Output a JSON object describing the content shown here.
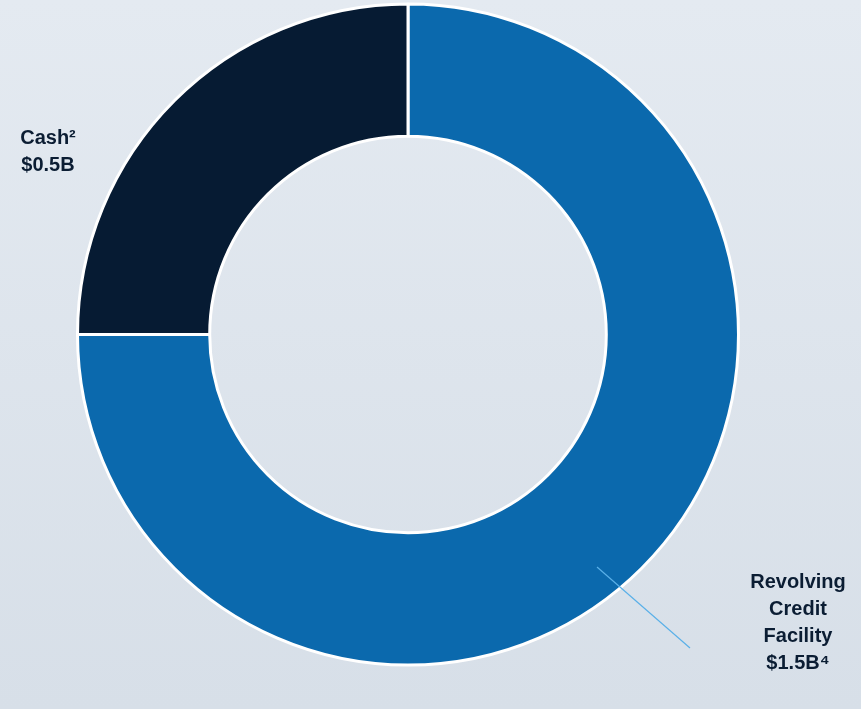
{
  "chart_data": {
    "type": "doughnut",
    "categories": [
      "Revolving Credit Facility",
      "Cash²"
    ],
    "values": [
      1.5,
      0.5
    ],
    "value_labels": [
      "$1.5B⁴",
      "$0.5B"
    ],
    "colors": [
      "#0b69ad",
      "#061b33"
    ],
    "data_labels": true
  }
}
